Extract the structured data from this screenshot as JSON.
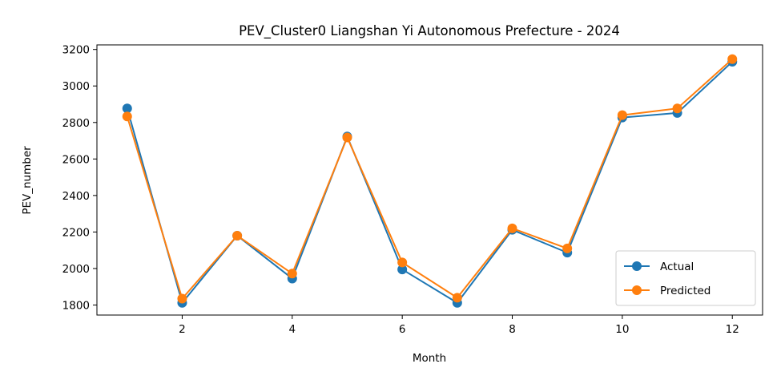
{
  "chart_data": {
    "type": "line",
    "title": "PEV_Cluster0 Liangshan Yi Autonomous Prefecture - 2024",
    "xlabel": "Month",
    "ylabel": "PEV_number",
    "x": [
      1,
      2,
      3,
      4,
      5,
      6,
      7,
      8,
      9,
      10,
      11,
      12
    ],
    "xlim": [
      0.45,
      12.55
    ],
    "ylim": [
      1745,
      3225
    ],
    "xticks": [
      2,
      4,
      6,
      8,
      10,
      12
    ],
    "yticks": [
      1800,
      2000,
      2200,
      2400,
      2600,
      2800,
      3000,
      3200
    ],
    "grid": false,
    "legend_position": "lower-right",
    "series": [
      {
        "name": "Actual",
        "color": "#1f77b4",
        "marker": "circle",
        "values": [
          2877,
          1812,
          2180,
          1945,
          2723,
          1995,
          1812,
          2212,
          2087,
          2827,
          2852,
          3133
        ]
      },
      {
        "name": "Predicted",
        "color": "#ff7f0e",
        "marker": "circle",
        "values": [
          2833,
          1835,
          2180,
          1972,
          2718,
          2033,
          1840,
          2220,
          2110,
          2840,
          2877,
          3147
        ]
      }
    ]
  }
}
